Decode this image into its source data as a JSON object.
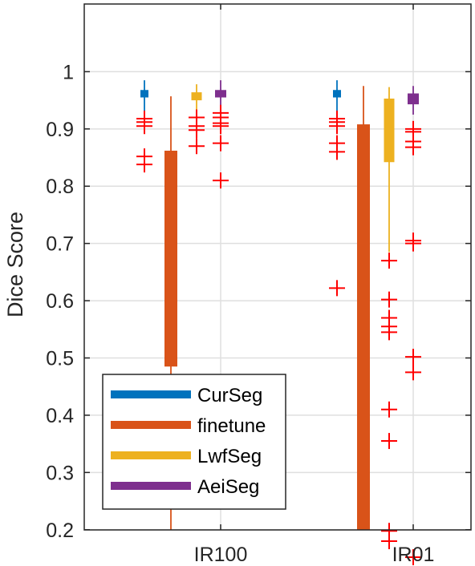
{
  "chart_data": {
    "type": "box",
    "ylabel": "Dice Score",
    "ylim": [
      0.11,
      1.02
    ],
    "yticks": [
      "0.2",
      "0.3",
      "0.4",
      "0.5",
      "0.6",
      "0.7",
      "0.8",
      "0.9",
      "1"
    ],
    "categories": [
      "IR100",
      "IR01"
    ],
    "grid": true,
    "legend_position": "bottom-left",
    "series": [
      {
        "name": "CurSeg",
        "color": "#0072BD",
        "boxes": [
          {
            "category": "IR100",
            "whisker_low": 0.93,
            "q1": 0.955,
            "median": 0.962,
            "q3": 0.968,
            "whisker_high": 0.985,
            "outliers": [
              0.918,
              0.912,
              0.905,
              0.852,
              0.838
            ]
          },
          {
            "category": "IR01",
            "whisker_low": 0.93,
            "q1": 0.955,
            "median": 0.962,
            "q3": 0.968,
            "whisker_high": 0.985,
            "outliers": [
              0.918,
              0.912,
              0.905,
              0.875,
              0.86,
              0.622
            ]
          }
        ]
      },
      {
        "name": "finetune",
        "color": "#D95319",
        "boxes": [
          {
            "category": "IR100",
            "whisker_low": 0.11,
            "q1": 0.485,
            "median": 0.485,
            "q3": 0.862,
            "whisker_high": 0.957,
            "outliers": []
          },
          {
            "category": "IR01",
            "whisker_low": 0.11,
            "q1": 0.11,
            "median": 0.11,
            "q3": 0.908,
            "whisker_high": 0.975,
            "outliers": []
          }
        ]
      },
      {
        "name": "LwfSeg",
        "color": "#EDB120",
        "boxes": [
          {
            "category": "IR100",
            "whisker_low": 0.93,
            "q1": 0.95,
            "median": 0.958,
            "q3": 0.964,
            "whisker_high": 0.978,
            "outliers": [
              0.92,
              0.905,
              0.898,
              0.87
            ]
          },
          {
            "category": "IR01",
            "whisker_low": 0.685,
            "q1": 0.842,
            "median": 0.9,
            "q3": 0.953,
            "whisker_high": 0.973,
            "outliers": [
              0.67,
              0.602,
              0.57,
              0.555,
              0.545,
              0.41,
              0.355,
              0.198,
              0.18
            ]
          }
        ]
      },
      {
        "name": "AeiSeg",
        "color": "#7E2F8E",
        "boxes": [
          {
            "category": "IR100",
            "whisker_low": 0.935,
            "q1": 0.955,
            "median": 0.962,
            "q3": 0.968,
            "whisker_high": 0.985,
            "outliers": [
              0.928,
              0.92,
              0.91,
              0.905,
              0.875,
              0.81
            ]
          },
          {
            "category": "IR01",
            "whisker_low": 0.925,
            "q1": 0.943,
            "median": 0.952,
            "q3": 0.962,
            "whisker_high": 0.975,
            "outliers": [
              0.9,
              0.895,
              0.878,
              0.868,
              0.705,
              0.7,
              0.502,
              0.475,
              0.152
            ]
          }
        ]
      }
    ]
  }
}
